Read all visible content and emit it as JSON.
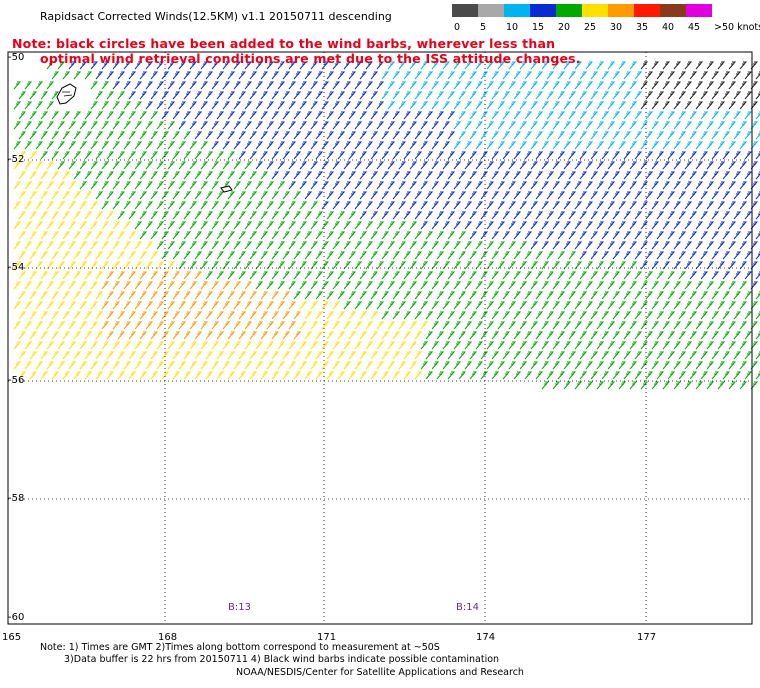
{
  "title": "Rapidsact Corrected Winds(12.5KM) v1.1 20150711 descending",
  "note": {
    "line1": "Note: black circles have been added to the wind barbs, wherever less than",
    "line2": "optimal wind retrieval conditions are met due to the ISS attitude changes."
  },
  "colorbar": {
    "labels": [
      "0",
      "5",
      "10",
      "15",
      "20",
      "25",
      "30",
      "35",
      "40",
      "45",
      ">50 knots"
    ],
    "colors": [
      "#4a4a4a",
      "#a8a8a8",
      "#00b4f0",
      "#0a2ad4",
      "#00a800",
      "#ffe000",
      "#ff9a00",
      "#ff1a00",
      "#8a3a1a",
      "#e000e0",
      "#7a00b4"
    ]
  },
  "axes": {
    "lat_labels": [
      "-50",
      "-52",
      "-54",
      "-56",
      "-58",
      "-60"
    ],
    "lon_labels": [
      "165",
      "168",
      "171",
      "174",
      "177"
    ]
  },
  "rev_labels": [
    "B:13",
    "B:14"
  ],
  "footnote": {
    "line1": "Note: 1) Times are GMT 2)Times along bottom correspond to measurement at ~50S",
    "line2": "3)Data buffer is 22 hrs from 20150711 4) Black wind barbs indicate possible contamination"
  },
  "credit": "NOAA/NESDIS/Center for Satellite Applications and Research"
}
